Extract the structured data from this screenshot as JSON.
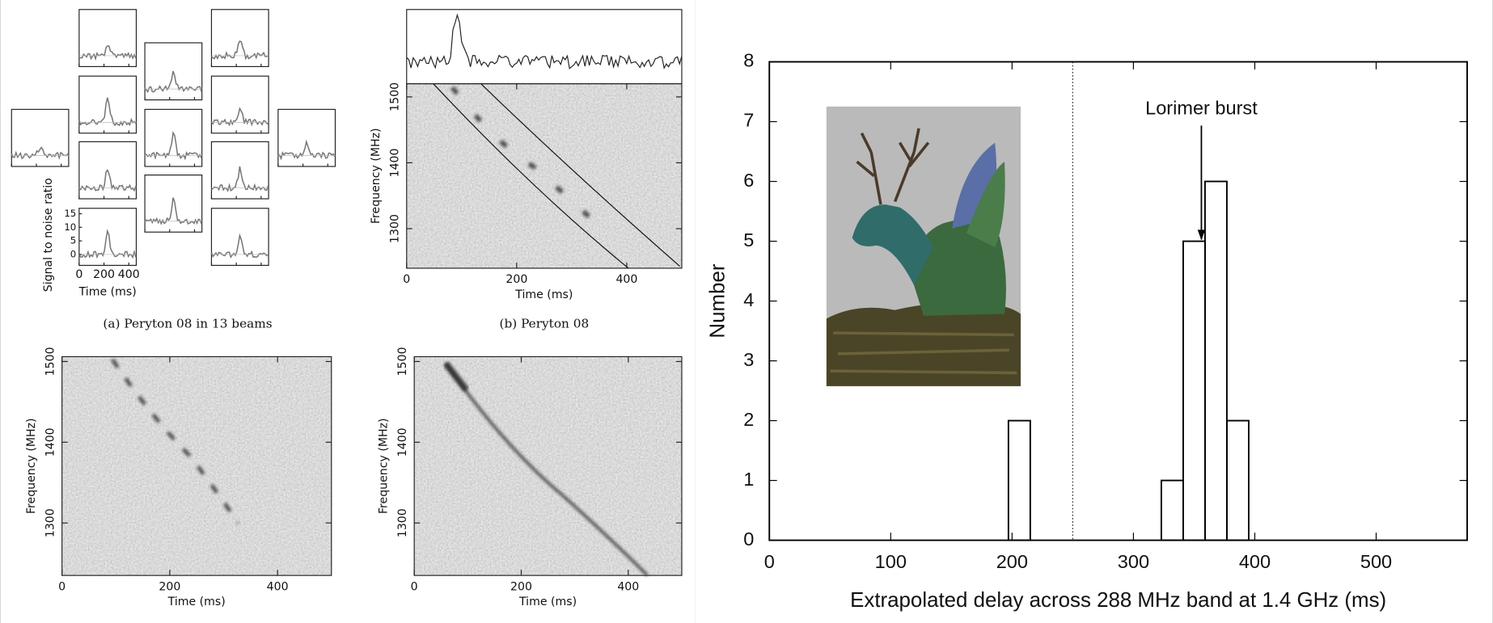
{
  "chart_data": [
    {
      "type": "beams",
      "caption": "(a) Peryton 08 in 13 beams",
      "xlabel": "Time (ms)",
      "ylabel": "Signal to noise ratio",
      "xlim": [
        0,
        460
      ],
      "xticks": [
        0,
        200,
        400
      ],
      "ylim": [
        -4,
        17
      ],
      "yticks": [
        0,
        5,
        10,
        15
      ]
    },
    {
      "type": "spectrogram",
      "caption": "(b) Peryton 08",
      "timeseries": true,
      "xlabel": "Time (ms)",
      "ylabel": "Frequency (MHz)",
      "xlim": [
        0,
        500
      ],
      "xticks": [
        0,
        200,
        400
      ],
      "ylim": [
        1240,
        1520
      ],
      "yticks": [
        1300,
        1400,
        1500
      ]
    },
    {
      "type": "spectrogram",
      "xlabel": "Time (ms)",
      "ylabel": "Frequency (MHz)",
      "xlim": [
        0,
        500
      ],
      "xticks": [
        0,
        200,
        400
      ],
      "ylim": [
        1235,
        1506
      ],
      "yticks": [
        1300,
        1400,
        1500
      ]
    },
    {
      "type": "spectrogram",
      "xlabel": "Time (ms)",
      "ylabel": "Frequency (MHz)",
      "xlim": [
        0,
        500
      ],
      "xticks": [
        0,
        200,
        400
      ],
      "ylim": [
        1235,
        1506
      ],
      "yticks": [
        1300,
        1400,
        1500
      ]
    },
    {
      "type": "histogram",
      "xlabel": "Extrapolated delay across 288 MHz band at 1.4 GHz (ms)",
      "ylabel": "Number",
      "bins": [
        197,
        215,
        233,
        251,
        269,
        287,
        305,
        323,
        341,
        359,
        377,
        395
      ],
      "values": [
        2,
        0,
        0,
        0,
        0,
        0,
        0,
        1,
        5,
        6,
        2
      ],
      "color": "#000000",
      "xlim": [
        0,
        575
      ],
      "xticks": [
        0,
        100,
        200,
        300,
        400,
        500
      ],
      "ylim": [
        0,
        8
      ],
      "yticks": [
        0,
        1,
        2,
        3,
        4,
        5,
        6,
        7,
        8
      ],
      "vline": 250,
      "annotation": {
        "text": "Lorimer burst",
        "x": 356,
        "y": 5
      }
    }
  ]
}
